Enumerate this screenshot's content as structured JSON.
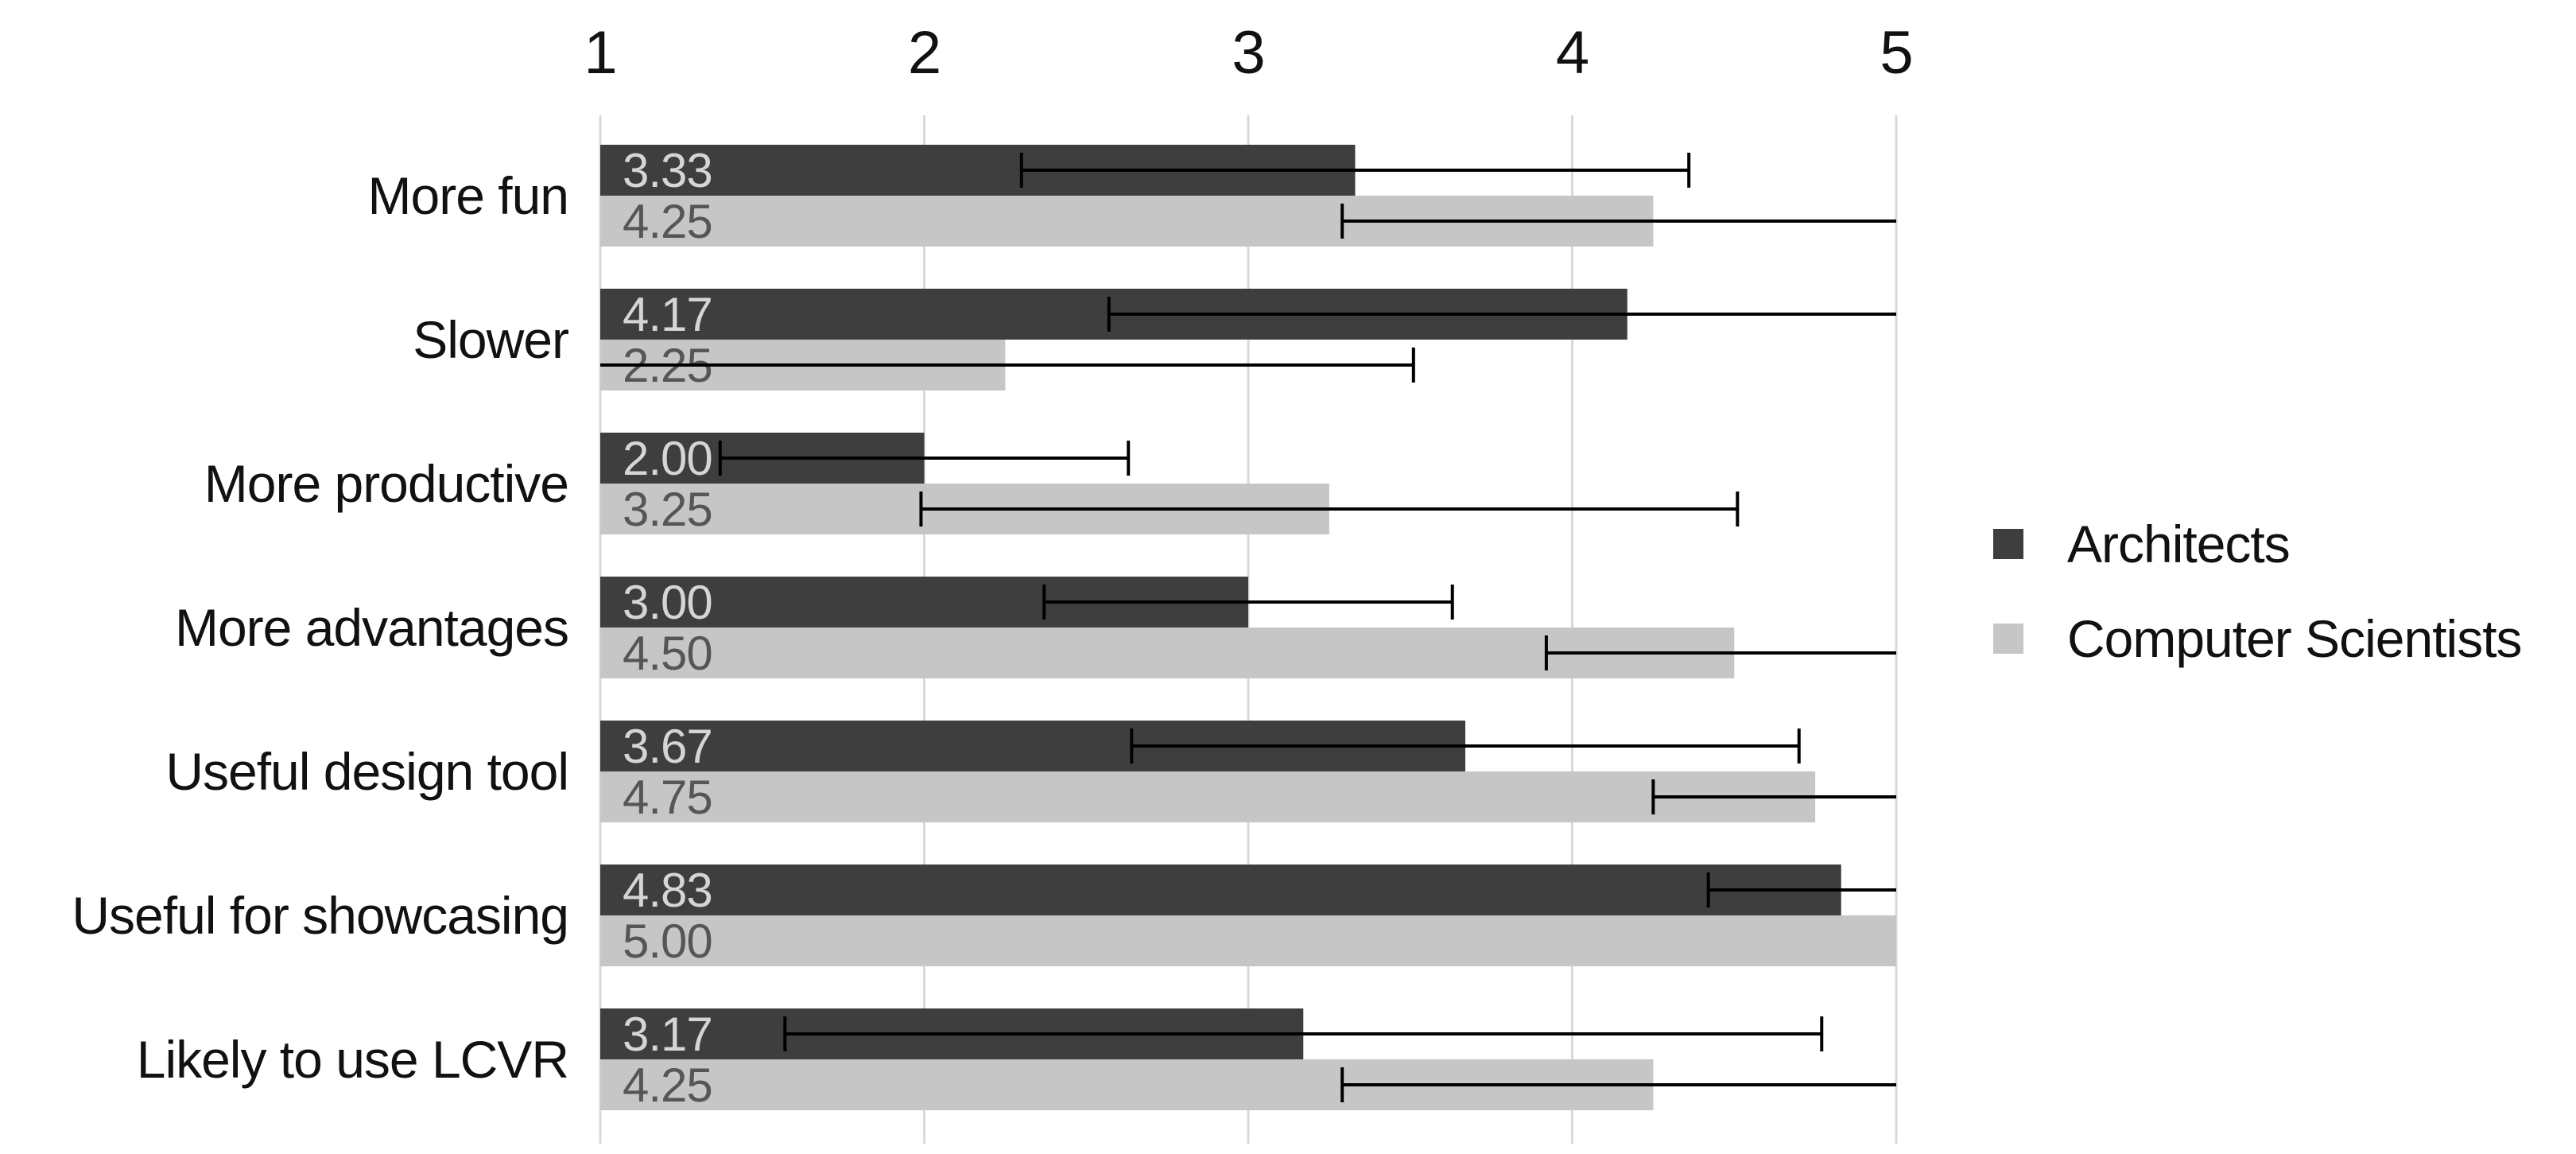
{
  "chart_data": {
    "type": "bar",
    "orientation": "horizontal",
    "title": "",
    "categories": [
      "More fun",
      "Slower",
      "More productive",
      "More advantages",
      "Useful design tool",
      "Useful for showcasing",
      "Likely to use LCVR"
    ],
    "series": [
      {
        "name": "Architects",
        "color": "#3e3e3e",
        "value_label_color": "#d6d4d4",
        "values": [
          3.33,
          4.17,
          2.0,
          3.0,
          3.67,
          4.83,
          3.17
        ],
        "value_labels": [
          "3.33",
          "4.17",
          "2.00",
          "3.00",
          "3.67",
          "4.83",
          "3.17"
        ],
        "error": [
          1.03,
          1.6,
          0.63,
          0.63,
          1.03,
          0.41,
          1.6
        ]
      },
      {
        "name": "Computer Scientists",
        "color": "#c6c6c6",
        "value_label_color": "#565656",
        "values": [
          4.25,
          2.25,
          3.25,
          4.5,
          4.75,
          5.0,
          4.25
        ],
        "value_labels": [
          "4.25",
          "2.25",
          "3.25",
          "4.50",
          "4.75",
          "5.00",
          "4.25"
        ],
        "error": [
          0.96,
          1.26,
          1.26,
          0.58,
          0.5,
          0.0,
          0.96
        ]
      }
    ],
    "x_axis": {
      "min": 1,
      "max": 5,
      "ticks": [
        "1",
        "2",
        "3",
        "4",
        "5"
      ],
      "position": "top"
    },
    "grid": true,
    "error_bars": true,
    "colors": {
      "gridline": "#d9d9d9",
      "error_bar": "#000000",
      "axis_text": "#111111",
      "category_text": "#111111"
    },
    "legend": {
      "position": "right",
      "items": [
        {
          "label": "Architects",
          "color": "#3e3e3e"
        },
        {
          "label": "Computer Scientists",
          "color": "#c6c6c6"
        }
      ]
    }
  }
}
